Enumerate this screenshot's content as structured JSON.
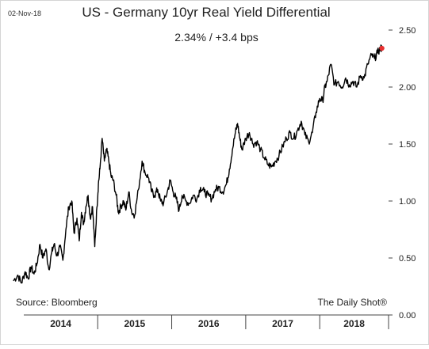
{
  "chart_data": {
    "type": "line",
    "date_label": "02-Nov-18",
    "title": "US - Germany 10yr Real Yield Differential",
    "subtitle": "2.34%  /  +3.4 bps",
    "source": "Source: Bloomberg",
    "credit": "The Daily Shot®",
    "ylim": [
      0,
      2.5
    ],
    "yticks": [
      "0.00",
      "0.50",
      "1.00",
      "1.50",
      "2.00",
      "2.50"
    ],
    "x_categories": [
      "2014",
      "2015",
      "2016",
      "2017",
      "2018"
    ],
    "x_range": [
      2013.83,
      2018.93
    ],
    "grid": false,
    "line_color": "#000000",
    "last_point_color": "#e83030",
    "series": [
      {
        "x": [
          2013.86,
          2013.92,
          2013.97,
          2014.02,
          2014.06,
          2014.1,
          2014.14,
          2014.18,
          2014.22,
          2014.26,
          2014.3,
          2014.34,
          2014.38,
          2014.41,
          2014.45,
          2014.49,
          2014.53,
          2014.57,
          2014.61,
          2014.65,
          2014.68,
          2014.72,
          2014.75,
          2014.78,
          2014.81,
          2014.84,
          2014.87,
          2014.9,
          2014.93,
          2014.96,
          2014.99,
          2015.01,
          2015.03,
          2015.06,
          2015.09,
          2015.12,
          2015.15,
          2015.18,
          2015.21,
          2015.25,
          2015.28,
          2015.31,
          2015.35,
          2015.38,
          2015.42,
          2015.46,
          2015.5,
          2015.55,
          2015.6,
          2015.64,
          2015.69,
          2015.73,
          2015.77,
          2015.81,
          2015.85,
          2015.89,
          2015.94,
          2015.98,
          2016.02,
          2016.06,
          2016.1,
          2016.14,
          2016.19,
          2016.24,
          2016.29,
          2016.34,
          2016.39,
          2016.44,
          2016.49,
          2016.54,
          2016.59,
          2016.64,
          2016.69,
          2016.74,
          2016.78,
          2016.82,
          2016.86,
          2016.89,
          2016.92,
          2016.95,
          2017.0,
          2017.05,
          2017.1,
          2017.15,
          2017.2,
          2017.25,
          2017.3,
          2017.35,
          2017.4,
          2017.45,
          2017.5,
          2017.55,
          2017.6,
          2017.65,
          2017.7,
          2017.75,
          2017.8,
          2017.85,
          2017.9,
          2017.95,
          2018.0,
          2018.04,
          2018.07,
          2018.1,
          2018.15,
          2018.2,
          2018.25,
          2018.3,
          2018.35,
          2018.4,
          2018.45,
          2018.5,
          2018.55,
          2018.6,
          2018.65,
          2018.7,
          2018.74,
          2018.78,
          2018.82,
          2018.84
        ],
        "values": [
          0.3,
          0.35,
          0.28,
          0.38,
          0.32,
          0.42,
          0.36,
          0.45,
          0.62,
          0.5,
          0.58,
          0.4,
          0.55,
          0.62,
          0.52,
          0.6,
          0.48,
          0.75,
          0.95,
          1.0,
          0.72,
          0.85,
          0.65,
          0.9,
          0.8,
          0.95,
          1.05,
          0.85,
          0.95,
          0.6,
          0.95,
          1.15,
          1.28,
          1.55,
          1.35,
          1.45,
          1.35,
          1.22,
          1.18,
          1.05,
          0.9,
          0.95,
          1.0,
          0.92,
          1.08,
          0.9,
          0.88,
          1.1,
          1.35,
          1.25,
          1.2,
          1.08,
          1.05,
          1.1,
          1.0,
          0.98,
          1.08,
          1.18,
          1.08,
          1.02,
          0.92,
          1.05,
          1.0,
          0.98,
          1.05,
          1.02,
          1.12,
          1.08,
          1.05,
          1.02,
          1.1,
          1.12,
          1.08,
          1.15,
          1.28,
          1.45,
          1.6,
          1.68,
          1.55,
          1.45,
          1.55,
          1.6,
          1.5,
          1.52,
          1.45,
          1.38,
          1.32,
          1.3,
          1.35,
          1.4,
          1.48,
          1.55,
          1.6,
          1.55,
          1.62,
          1.7,
          1.58,
          1.52,
          1.6,
          1.78,
          1.9,
          1.88,
          2.0,
          2.05,
          2.2,
          2.02,
          2.05,
          2.0,
          2.08,
          2.02,
          2.05,
          2.0,
          2.1,
          2.08,
          2.2,
          2.28,
          2.25,
          2.3,
          2.34,
          2.34
        ]
      }
    ]
  }
}
